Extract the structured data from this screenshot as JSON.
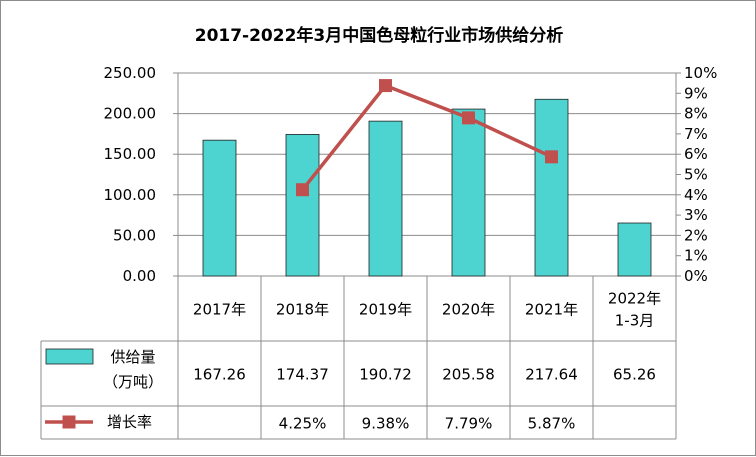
{
  "chart_data": {
    "type": "bar",
    "title": "2017-2022年3月中国色母粒行业市场供给分析",
    "categories": [
      "2017年",
      "2018年",
      "2019年",
      "2020年",
      "2021年",
      "2022年\n1-3月"
    ],
    "series": [
      {
        "name": "供给量（万吨）",
        "type": "bar",
        "axis": "left",
        "values": [
          167.26,
          174.37,
          190.72,
          205.58,
          217.64,
          65.26
        ],
        "labels": [
          "167.26",
          "174.37",
          "190.72",
          "205.58",
          "217.64",
          "65.26"
        ],
        "color": "#4dd4d0"
      },
      {
        "name": "增长率",
        "type": "line",
        "axis": "right",
        "values": [
          null,
          4.25,
          9.38,
          7.79,
          5.87,
          null
        ],
        "labels": [
          "",
          "4.25%",
          "9.38%",
          "7.79%",
          "5.87%",
          ""
        ],
        "color": "#c0504d"
      }
    ],
    "legend_labels": {
      "bar_line1": "供给量",
      "bar_line2": "（万吨）",
      "line": "增长率"
    },
    "y_left": {
      "min": 0,
      "max": 250,
      "ticks": [
        "0.00",
        "50.00",
        "100.00",
        "150.00",
        "200.00",
        "250.00"
      ]
    },
    "y_right": {
      "min": 0,
      "max": 10,
      "ticks": [
        "0%",
        "1%",
        "2%",
        "3%",
        "4%",
        "5%",
        "6%",
        "7%",
        "8%",
        "9%",
        "10%"
      ]
    },
    "gridlines": true,
    "legend": "data-table"
  }
}
